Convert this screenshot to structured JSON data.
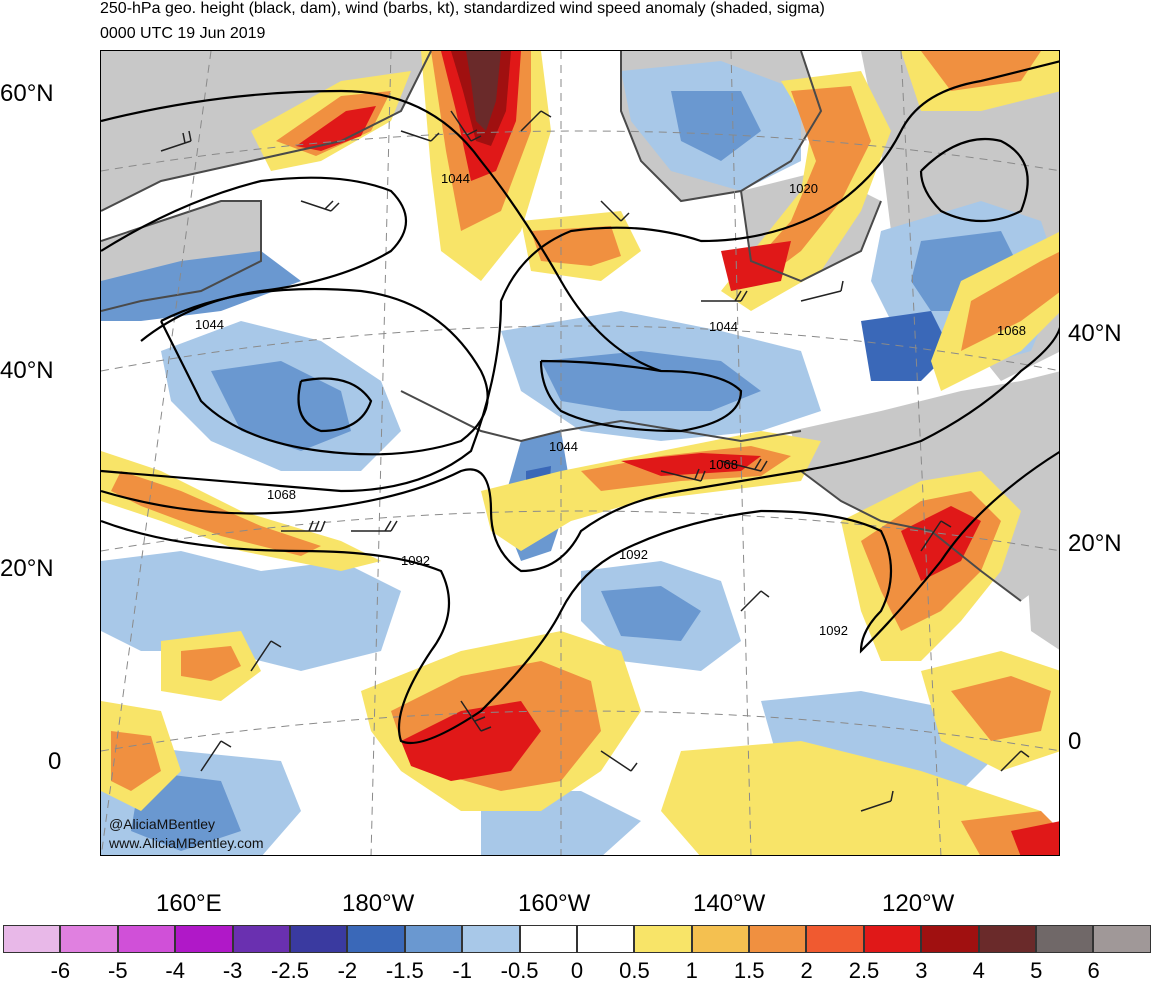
{
  "title_line1": "250-hPa geo. height (black, dam), wind (barbs, kt), standardized wind speed anomaly (shaded, sigma)",
  "title_line2": "0000 UTC 19 Jun 2019",
  "credit": {
    "twitter": "@AliciaMBentley",
    "website": "www.AliciaMBentley.com"
  },
  "lat_labels_left": [
    "60°N",
    "40°N",
    "20°N",
    "0"
  ],
  "lat_labels_right": [
    "40°N",
    "20°N",
    "0"
  ],
  "lon_labels": [
    "160°E",
    "180°W",
    "160°W",
    "140°W",
    "120°W"
  ],
  "contour_labels": [
    "1044",
    "1020",
    "1044",
    "1044",
    "1068",
    "1044",
    "1068",
    "1068",
    "1092",
    "1092",
    "1092"
  ],
  "colorbar": {
    "labels": [
      "-6",
      "-5",
      "-4",
      "-3",
      "-2.5",
      "-2",
      "-1.5",
      "-1",
      "-0.5",
      "0",
      "0.5",
      "1",
      "1.5",
      "2",
      "2.5",
      "3",
      "4",
      "5",
      "6"
    ],
    "colors": [
      "#e8b8e8",
      "#e080e0",
      "#d050d8",
      "#b018c8",
      "#6a30b0",
      "#3a3aa0",
      "#3a68b8",
      "#6a98d0",
      "#a8c8e8",
      "#ffffff",
      "#ffffff",
      "#f8e468",
      "#f4c050",
      "#f09040",
      "#f05a30",
      "#e01818",
      "#a01010",
      "#6a2a2a",
      "#706868",
      "#a09898"
    ]
  },
  "colors": {
    "land": "#c8c8c8",
    "contour": "#000000",
    "coast": "#4a4a4a"
  }
}
